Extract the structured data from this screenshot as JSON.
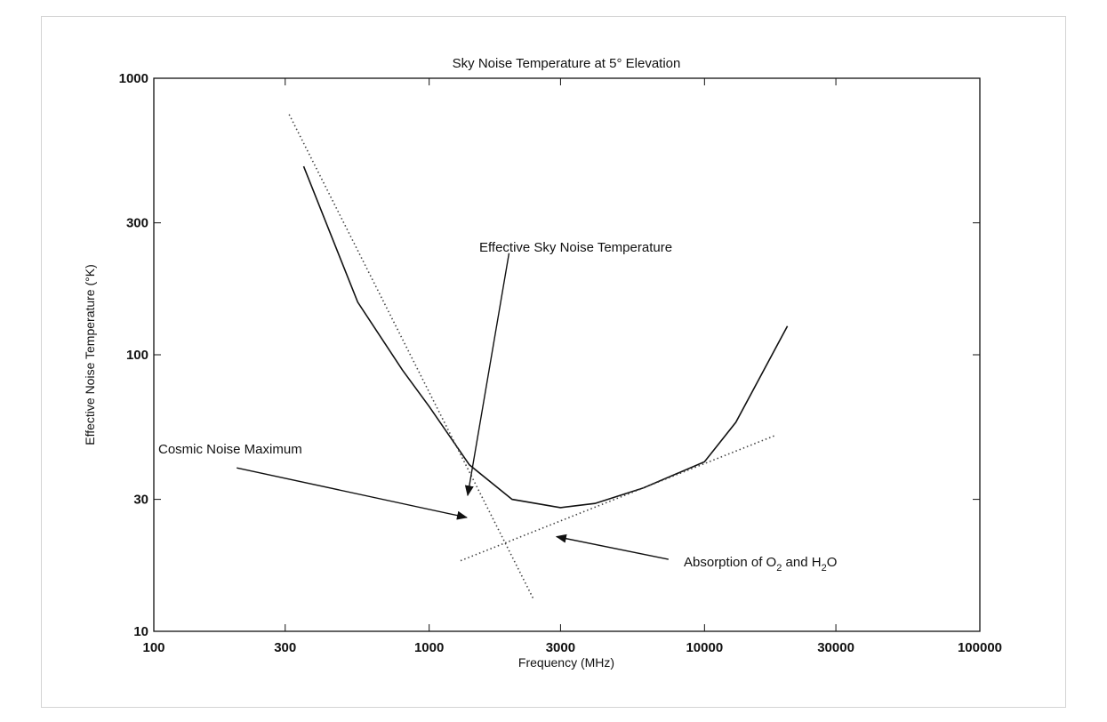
{
  "chart_data": {
    "type": "line",
    "title": "Sky Noise Temperature at 5° Elevation",
    "xlabel": "Frequency (MHz)",
    "ylabel": "Effective Noise Temperature (°K)",
    "xscale": "log",
    "yscale": "log",
    "xlim": [
      100,
      100000
    ],
    "ylim": [
      10,
      1000
    ],
    "xticks": [
      100,
      300,
      1000,
      3000,
      10000,
      30000,
      100000
    ],
    "xtick_labels": [
      "100",
      "300",
      "1000",
      "3000",
      "10000",
      "30000",
      "100000"
    ],
    "yticks": [
      10,
      30,
      100,
      300,
      1000
    ],
    "ytick_labels": [
      "10",
      "30",
      "100",
      "300",
      "1000"
    ],
    "grid": false,
    "series": [
      {
        "name": "Effective Sky Noise Temperature",
        "style": "solid",
        "x": [
          350,
          550,
          800,
          1000,
          1400,
          2000,
          3000,
          4000,
          6000,
          10000,
          13000,
          20000
        ],
        "y": [
          480,
          155,
          88,
          65,
          40,
          30,
          28,
          29,
          33,
          41,
          57,
          127
        ]
      },
      {
        "name": "Cosmic Noise Maximum",
        "style": "dotted",
        "x": [
          310,
          2400
        ],
        "y": [
          740,
          13
        ]
      },
      {
        "name": "Absorption of O2 and H2O",
        "style": "dotted",
        "x": [
          1300,
          18000
        ],
        "y": [
          18,
          51
        ]
      }
    ],
    "annotations": [
      {
        "id": "effective",
        "text": "Effective Sky Noise Temperature",
        "arrow_tail": [
          1950,
          233
        ],
        "arrow_head": [
          1380,
          31
        ]
      },
      {
        "id": "cosmic",
        "text": "Cosmic Noise Maximum",
        "arrow_tail": [
          200,
          39
        ],
        "arrow_head": [
          1370,
          25.8
        ]
      },
      {
        "id": "absorption",
        "text_main": "Absorption of O",
        "text_sub1": "2",
        "text_mid": " and H",
        "text_sub2": "2",
        "text_end": "O",
        "arrow_tail": [
          7400,
          18.2
        ],
        "arrow_head": [
          2900,
          22
        ]
      }
    ]
  }
}
